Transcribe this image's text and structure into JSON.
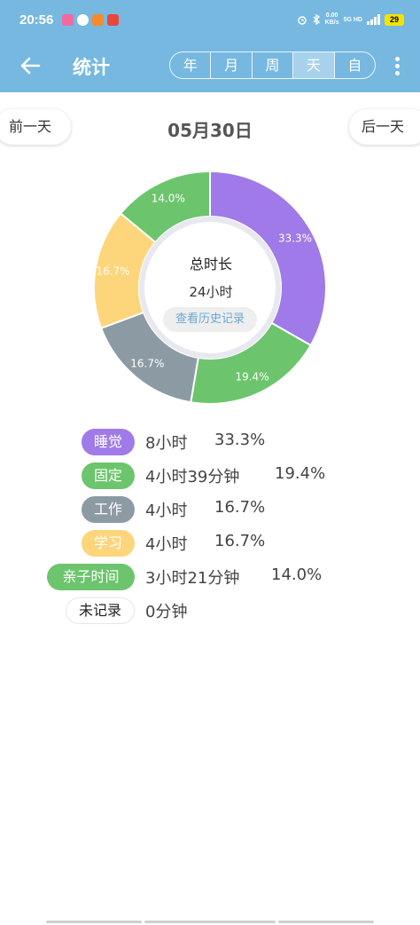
{
  "status_bar": {
    "time": "20:56",
    "speed_value": "0.00",
    "speed_unit": "KB/s",
    "network": "5G HD",
    "battery": "29"
  },
  "header": {
    "title": "统计",
    "tabs": [
      "年",
      "月",
      "周",
      "天",
      "自"
    ],
    "active_tab_index": 3
  },
  "date_nav": {
    "prev_label": "前一天",
    "date": "05月30日",
    "next_label": "后一天"
  },
  "summary": {
    "total_label": "总时长",
    "total_value": "24小时",
    "history_button": "查看历史记录"
  },
  "chart_data": {
    "type": "pie",
    "variant": "donut",
    "slices": [
      {
        "label": "睡觉",
        "value": 33.3,
        "display": "33.3%",
        "color": "#a07ae8"
      },
      {
        "label": "固定",
        "value": 19.4,
        "display": "19.4%",
        "color": "#6cc56c"
      },
      {
        "label": "工作",
        "value": 16.7,
        "display": "16.7%",
        "color": "#8c9aa3"
      },
      {
        "label": "学习",
        "value": 16.7,
        "display": "16.7%",
        "color": "#fdd57b"
      },
      {
        "label": "亲子时间",
        "value": 14.0,
        "display": "14.0%",
        "color": "#6cc56c"
      }
    ]
  },
  "legend": [
    {
      "name": "睡觉",
      "duration": "8小时",
      "percent": "33.3%",
      "color": "#a07ae8"
    },
    {
      "name": "固定",
      "duration": "4小时39分钟",
      "percent": "19.4%",
      "color": "#6cc56c"
    },
    {
      "name": "工作",
      "duration": "4小时",
      "percent": "16.7%",
      "color": "#8c9aa3"
    },
    {
      "name": "学习",
      "duration": "4小时",
      "percent": "16.7%",
      "color": "#fdd57b"
    },
    {
      "name": "亲子时间",
      "duration": "3小时21分钟",
      "percent": "14.0%",
      "color": "#6cc56c"
    },
    {
      "name": "未记录",
      "duration": "0分钟",
      "percent": "",
      "color": "#ffffff"
    }
  ]
}
